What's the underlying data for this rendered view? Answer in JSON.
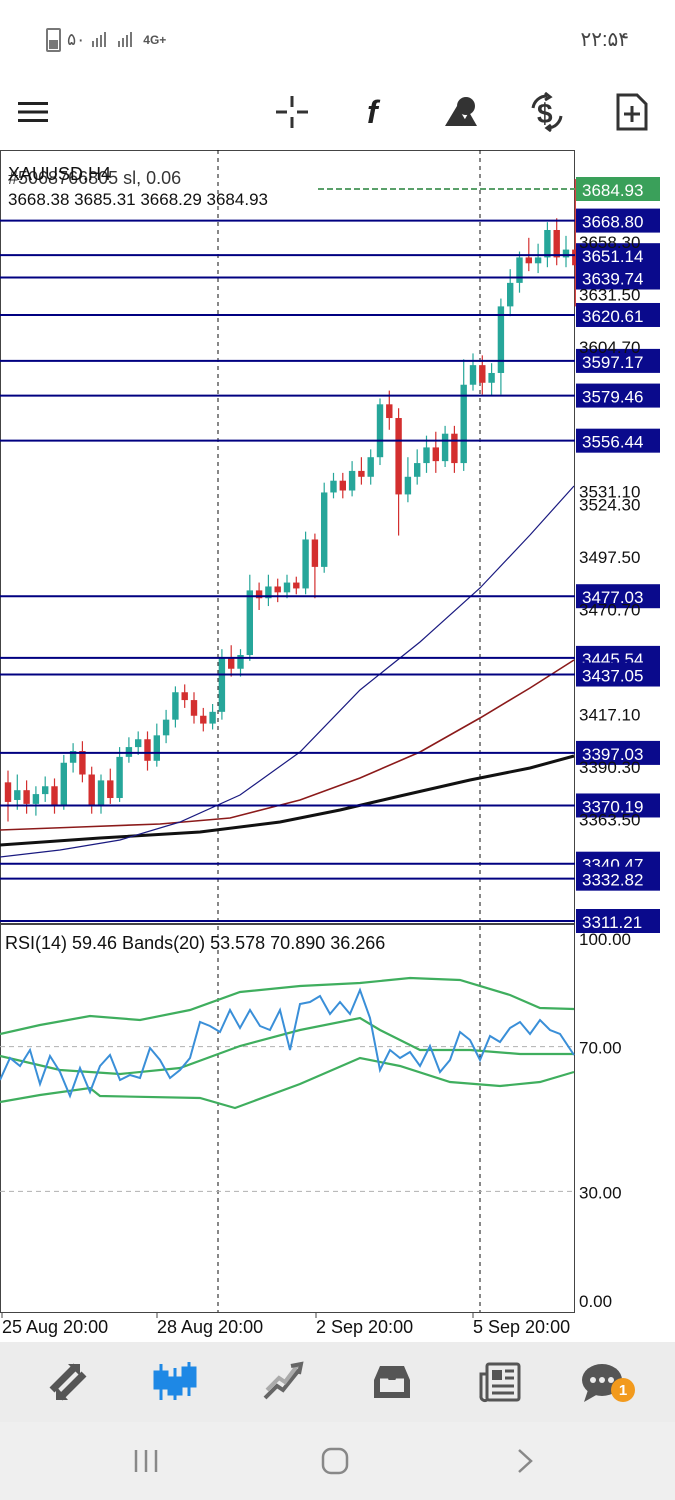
{
  "status_bar": {
    "battery_level": "۵۰",
    "network": "4G+",
    "time": "۲۲:۵۴"
  },
  "toolbar": {
    "icons": [
      "menu-icon",
      "crosshair-icon",
      "function-icon",
      "shapes-icon",
      "trade-dollar-icon",
      "new-document-icon"
    ]
  },
  "chart_header": {
    "symbol_overlap_line": "XAUUSD,H4",
    "order_overlap_line": "#5068766805 sl, 0.06",
    "ohlc": "3668.38 3685.31 3668.29 3684.93"
  },
  "price_axis": {
    "current_price": "3684.93",
    "ticks": [
      "3658.30",
      "3631.50",
      "3604.70",
      "3531.10",
      "3524.30",
      "3497.50",
      "3470.70",
      "3417.10",
      "3390.30",
      "3363.50"
    ],
    "level_labels": [
      "3668.80",
      "3651.14",
      "3639.74",
      "3620.61",
      "3597.17",
      "3579.46",
      "3556.44",
      "3477.03",
      "3445.54",
      "3437.05",
      "3397.03",
      "3370.19",
      "3340.47",
      "3332.82",
      "3311.21"
    ]
  },
  "time_axis": {
    "labels": [
      "25 Aug 20:00",
      "28 Aug 20:00",
      "2 Sep 20:00",
      "5 Sep 20:00"
    ]
  },
  "rsi_panel": {
    "header": "RSI(14) 59.46 Bands(20) 53.578 70.890 36.266",
    "ticks": [
      "100.00",
      "70.00",
      "30.00",
      "0.00"
    ]
  },
  "bottom_nav": {
    "icons": [
      "quotes-icon",
      "chart-icon",
      "trade-icon",
      "history-icon",
      "news-icon",
      "messages-icon"
    ],
    "messages_badge": "1"
  },
  "colors": {
    "level_line": "#000080",
    "label_bg": "#0a0a8c",
    "bull": "#26a69a",
    "bear": "#d32f2f",
    "ma_fast": "#1a1a80",
    "ma_mid": "#8b1a1a",
    "ma_slow": "#111111",
    "rsi": "#3a8fd8",
    "bands": "#3fae5e",
    "accent": "#1e88e5"
  }
}
